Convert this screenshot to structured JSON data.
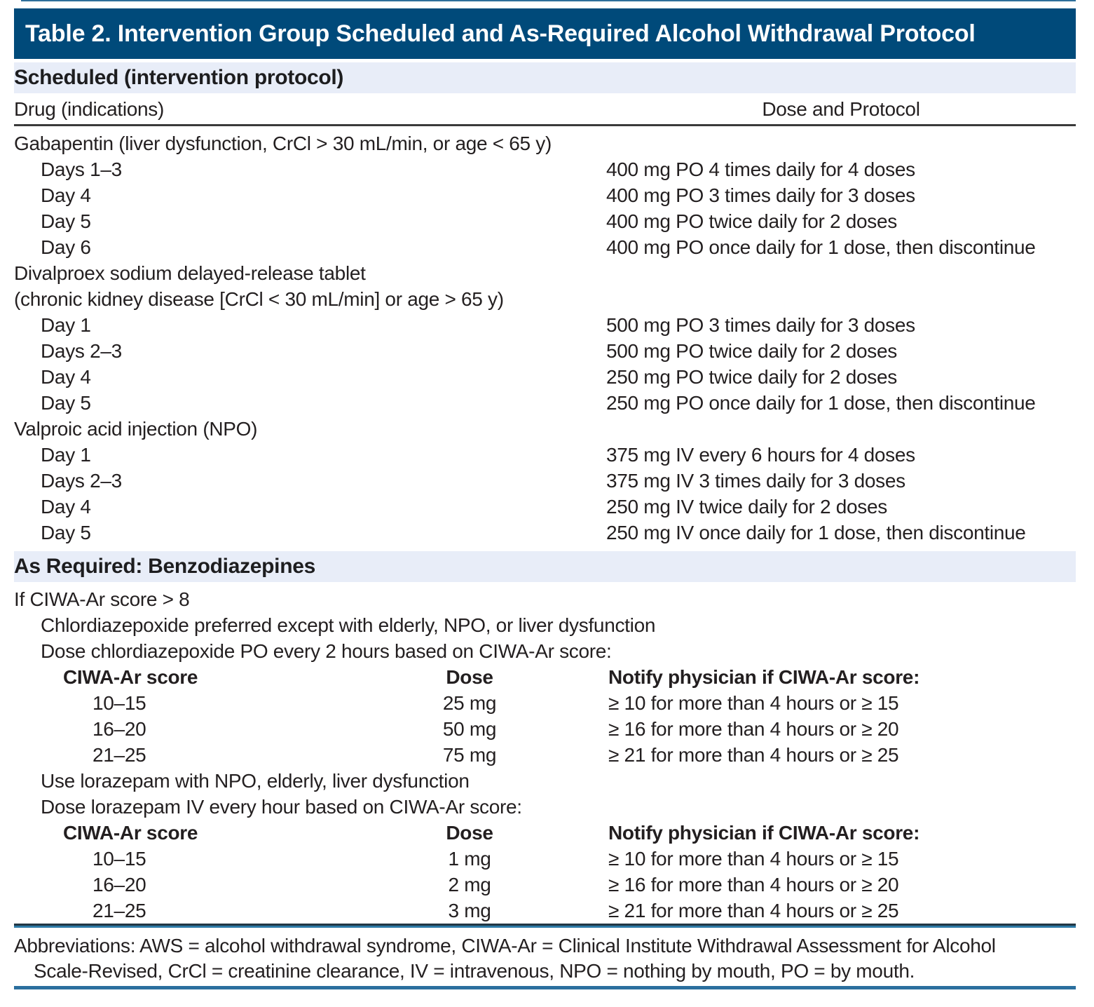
{
  "title": "Table 2. Intervention Group Scheduled and As-Required Alcohol Withdrawal Protocol",
  "colors": {
    "title_bar_bg": "#004a7a",
    "section_band_bg": "#e8edf8",
    "rule_blue": "#2d7aa6",
    "rule_dark": "#3a3a3a",
    "text": "#231f20"
  },
  "scheduled": {
    "section_label": "Scheduled (intervention protocol)",
    "col_drug": "Drug (indications)",
    "col_dose": "Dose and Protocol",
    "drugs": [
      {
        "name": "Gabapentin (liver dysfunction, CrCl > 30 mL/min, or age < 65 y)",
        "rows": [
          {
            "day": "Days 1–3",
            "dose": "400 mg PO 4 times daily for 4 doses"
          },
          {
            "day": "Day 4",
            "dose": "400 mg PO 3 times daily for 3 doses"
          },
          {
            "day": "Day 5",
            "dose": "400 mg PO twice daily for 2 doses"
          },
          {
            "day": "Day 6",
            "dose": "400 mg PO once daily for 1 dose, then discontinue"
          }
        ]
      },
      {
        "name": "Divalproex sodium delayed-release tablet",
        "name2": "(chronic kidney disease [CrCl < 30 mL/min] or age > 65 y)",
        "rows": [
          {
            "day": "Day 1",
            "dose": "500 mg PO 3 times daily for 3 doses"
          },
          {
            "day": "Days 2–3",
            "dose": "500 mg PO twice daily for 2 doses"
          },
          {
            "day": "Day 4",
            "dose": "250 mg PO twice daily for 2 doses"
          },
          {
            "day": "Day 5",
            "dose": "250 mg PO once daily for 1 dose, then discontinue"
          }
        ]
      },
      {
        "name": "Valproic acid injection (NPO)",
        "rows": [
          {
            "day": "Day 1",
            "dose": "375 mg IV every 6 hours for 4 doses"
          },
          {
            "day": "Days 2–3",
            "dose": "375 mg IV 3 times daily for 3 doses"
          },
          {
            "day": "Day 4",
            "dose": "250 mg IV twice daily for 2 doses"
          },
          {
            "day": "Day 5",
            "dose": "250 mg IV once daily for 1 dose, then discontinue"
          }
        ]
      }
    ]
  },
  "as_required": {
    "section_label": "As Required: Benzodiazepines",
    "intro": "If CIWA-Ar score > 8",
    "blocks": [
      {
        "note": "Chlordiazepoxide preferred except with elderly, NPO, or liver dysfunction",
        "dose_line": "Dose chlordiazepoxide PO every 2 hours based on CIWA-Ar score:",
        "col_score": "CIWA-Ar score",
        "col_dose": "Dose",
        "col_notify": "Notify physician if CIWA-Ar score:",
        "rows": [
          {
            "score": "10–15",
            "dose": "25 mg",
            "notify": "≥ 10 for more than 4 hours or ≥ 15"
          },
          {
            "score": "16–20",
            "dose": "50 mg",
            "notify": "≥ 16 for more than 4 hours or ≥ 20"
          },
          {
            "score": "21–25",
            "dose": "75 mg",
            "notify": "≥ 21 for more than 4 hours or ≥ 25"
          }
        ]
      },
      {
        "note": "Use lorazepam with NPO, elderly, liver dysfunction",
        "dose_line": "Dose lorazepam IV every hour based on CIWA-Ar score:",
        "col_score": "CIWA-Ar score",
        "col_dose": "Dose",
        "col_notify": "Notify physician if CIWA-Ar score:",
        "rows": [
          {
            "score": "10–15",
            "dose": "1 mg",
            "notify": "≥ 10 for more than 4 hours or ≥ 15"
          },
          {
            "score": "16–20",
            "dose": "2 mg",
            "notify": "≥ 16 for more than 4 hours or ≥ 20"
          },
          {
            "score": "21–25",
            "dose": "3 mg",
            "notify": "≥ 21 for more than 4 hours or ≥ 25"
          }
        ]
      }
    ]
  },
  "footnote": {
    "line1": "Abbreviations: AWS = alcohol withdrawal syndrome, CIWA-Ar = Clinical Institute Withdrawal Assessment for Alcohol",
    "line2": "Scale-Revised, CrCl = creatinine clearance, IV = intravenous, NPO = nothing by mouth, PO = by mouth."
  }
}
